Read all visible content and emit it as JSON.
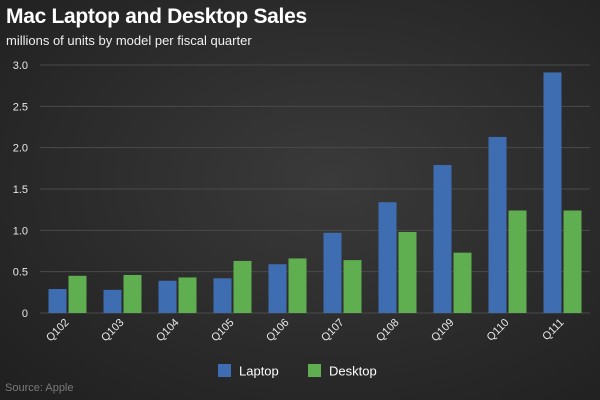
{
  "title": "Mac Laptop and Desktop Sales",
  "subtitle": "millions of units by model per fiscal quarter",
  "source": "Source: Apple",
  "chart_data": {
    "type": "bar",
    "categories": [
      "Q102",
      "Q103",
      "Q104",
      "Q105",
      "Q106",
      "Q107",
      "Q108",
      "Q109",
      "Q110",
      "Q111"
    ],
    "series": [
      {
        "name": "Laptop",
        "color": "#3e6eb1",
        "values": [
          0.29,
          0.28,
          0.39,
          0.42,
          0.59,
          0.97,
          1.34,
          1.79,
          2.13,
          2.91
        ]
      },
      {
        "name": "Desktop",
        "color": "#5fae50",
        "values": [
          0.45,
          0.46,
          0.43,
          0.63,
          0.66,
          0.64,
          0.98,
          0.73,
          1.24,
          1.24
        ]
      }
    ],
    "yticks": [
      "0",
      "0.5",
      "1.0",
      "1.5",
      "2.0",
      "2.5",
      "3.0"
    ],
    "ylim": [
      0,
      3.0
    ],
    "grid": true,
    "legend_position": "bottom-center"
  }
}
